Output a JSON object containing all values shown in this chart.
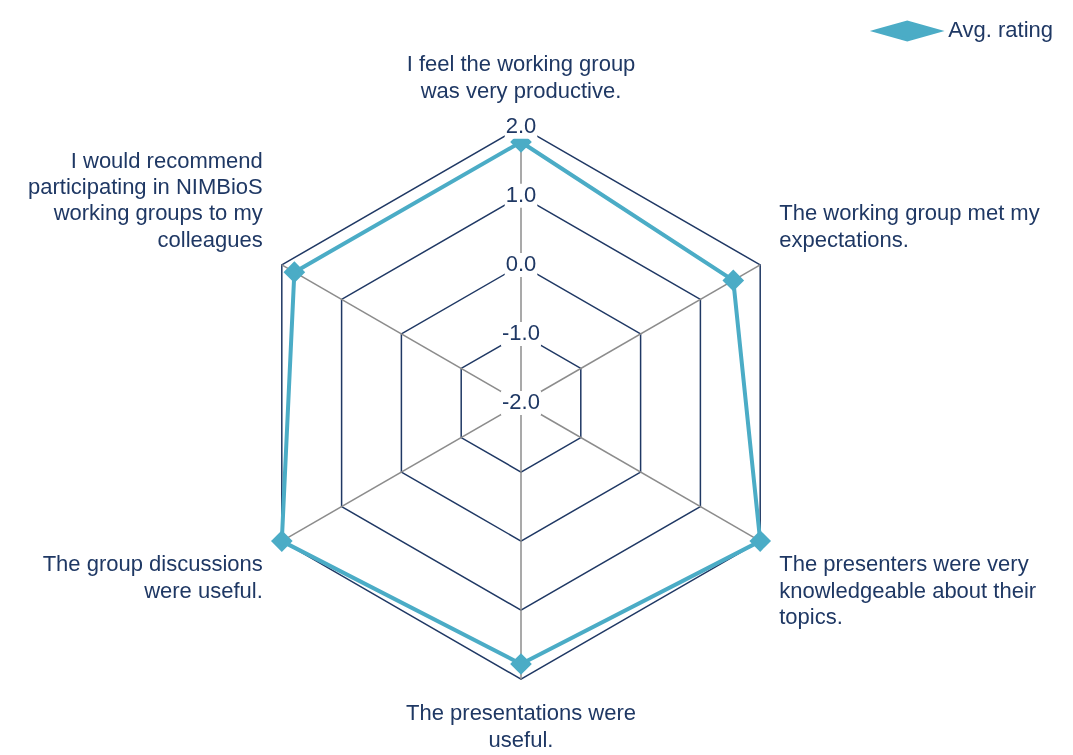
{
  "chart_data": {
    "type": "radar",
    "categories": [
      "I feel the working group was very productive.",
      "The working group met my expectations.",
      "The presenters were very knowledgeable about their topics.",
      "The presentations were useful.",
      "The group discussions were useful.",
      "I would recommend participating in NIMBioS working groups to my colleagues"
    ],
    "series": [
      {
        "name": "Avg. rating",
        "color": "#4bacc6",
        "values": [
          1.78,
          1.55,
          2.0,
          1.78,
          2.0,
          1.79
        ]
      }
    ],
    "ylim": [
      -2,
      2
    ],
    "yticks": [
      {
        "value": -2,
        "label": "-2.0"
      },
      {
        "value": -1,
        "label": "-1.0"
      },
      {
        "value": 0,
        "label": "0.0"
      },
      {
        "value": 1,
        "label": "1.0"
      },
      {
        "value": 2,
        "label": "2.0"
      }
    ],
    "grid": true,
    "legend": "top right",
    "marker": "diamond",
    "line_style": "solid"
  }
}
